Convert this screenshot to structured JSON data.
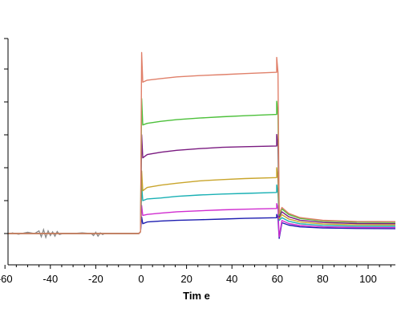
{
  "chart_data": {
    "type": "line",
    "title": "",
    "xlabel": "Tim e",
    "ylabel": "",
    "xlim": [
      -60,
      113
    ],
    "x_ticks": [
      -60,
      -40,
      -20,
      0,
      20,
      40,
      60,
      80,
      100
    ],
    "ylim": [
      -1,
      6.2
    ],
    "y_ticks": [
      -1,
      0,
      1,
      2,
      3,
      4,
      5,
      6
    ],
    "grid": false,
    "legend": "none",
    "baseline": {
      "color": "#888888",
      "x": [
        -57,
        -54,
        -50,
        -47,
        -45,
        -44,
        -43,
        -42,
        -41,
        -40,
        -39,
        -38,
        -37,
        -36,
        -34,
        -30,
        -26,
        -22,
        -21,
        -20,
        -19,
        -18,
        -17,
        -16,
        -14,
        -10,
        -5,
        -1
      ],
      "y": [
        0.02,
        -0.02,
        0.04,
        0.0,
        0.08,
        -0.1,
        0.12,
        -0.12,
        0.08,
        -0.06,
        0.05,
        -0.08,
        0.06,
        -0.03,
        0.01,
        0.0,
        0.02,
        0.0,
        -0.06,
        0.04,
        -0.08,
        0.02,
        -0.03,
        0.0,
        0.01,
        0.0,
        0.0,
        0.0
      ]
    },
    "series": [
      {
        "color": "#1c1cb0",
        "values": [
          0.3,
          0.35,
          0.38,
          0.4,
          0.42,
          0.44,
          0.46,
          0.48
        ],
        "peak": 0.5,
        "off_dip": -0.15,
        "off_end": 0.15
      },
      {
        "color": "#d02dd0",
        "values": [
          0.55,
          0.58,
          0.62,
          0.66,
          0.69,
          0.72,
          0.74,
          0.76
        ],
        "peak": 0.85,
        "off_dip": -0.1,
        "off_end": 0.18
      },
      {
        "color": "#19b0b4",
        "values": [
          1.0,
          1.05,
          1.08,
          1.13,
          1.17,
          1.2,
          1.22,
          1.25
        ],
        "peak": 1.45,
        "off_dip": 0.4,
        "off_end": 0.22
      },
      {
        "color": "#c9a52c",
        "values": [
          1.3,
          1.4,
          1.47,
          1.53,
          1.6,
          1.64,
          1.67,
          1.7
        ],
        "peak": 1.9,
        "off_dip": 0.45,
        "off_end": 0.26
      },
      {
        "color": "#7a1a80",
        "values": [
          2.3,
          2.4,
          2.47,
          2.53,
          2.58,
          2.62,
          2.64,
          2.66
        ],
        "peak": 3.0,
        "off_dip": 0.5,
        "off_end": 0.3
      },
      {
        "color": "#4cc03a",
        "values": [
          3.3,
          3.35,
          3.41,
          3.46,
          3.51,
          3.55,
          3.58,
          3.62
        ],
        "peak": 4.1,
        "off_dip": 0.55,
        "off_end": 0.34
      },
      {
        "color": "#e0806a",
        "values": [
          4.6,
          4.66,
          4.71,
          4.76,
          4.8,
          4.83,
          4.86,
          4.9
        ],
        "peak": 5.5,
        "off_dip": 0.6,
        "off_end": 0.36
      }
    ]
  }
}
